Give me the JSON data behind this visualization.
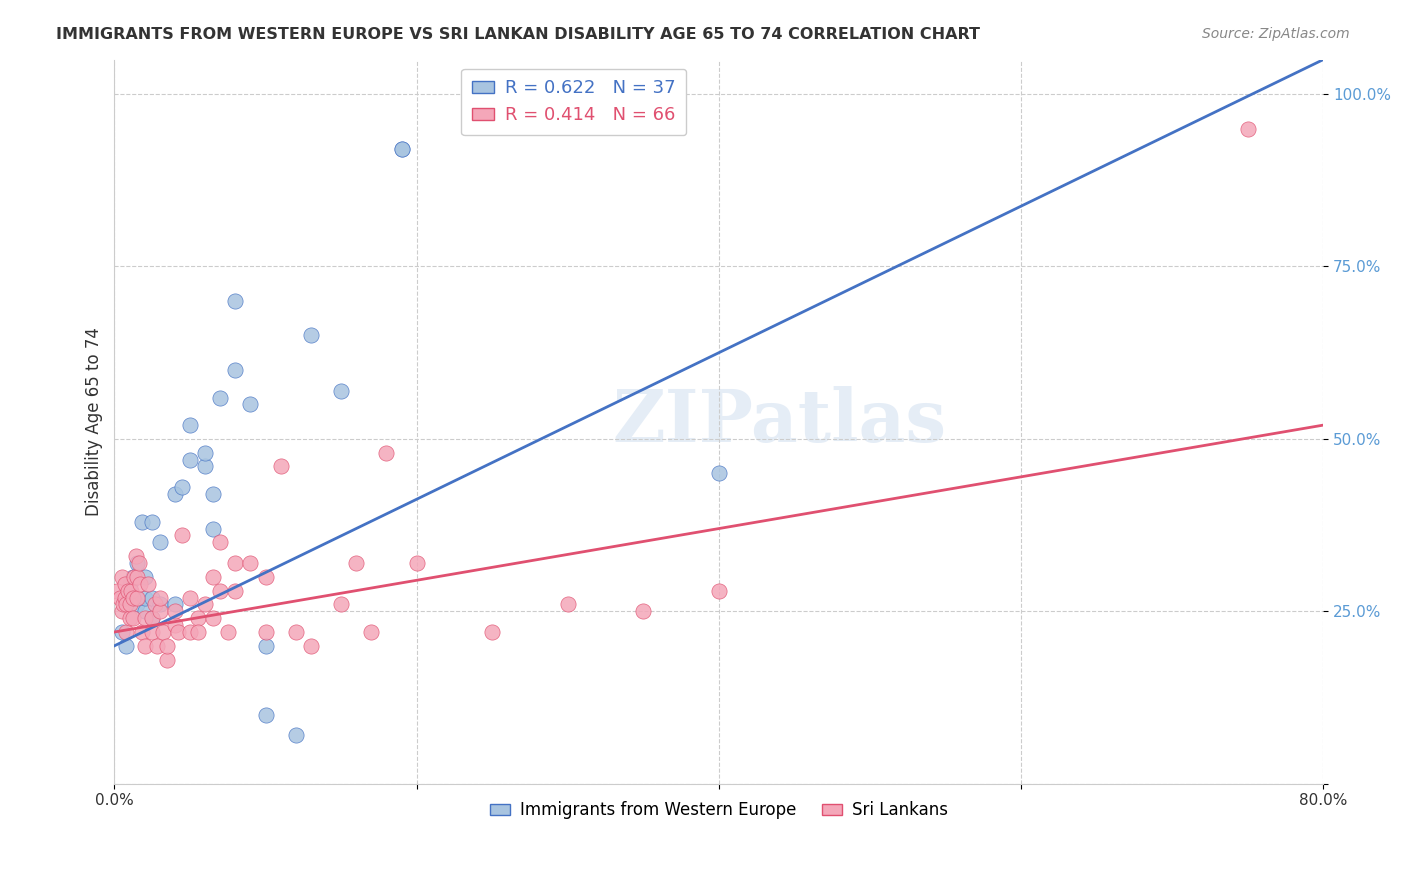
{
  "title": "IMMIGRANTS FROM WESTERN EUROPE VS SRI LANKAN DISABILITY AGE 65 TO 74 CORRELATION CHART",
  "source": "Source: ZipAtlas.com",
  "xlabel": "",
  "ylabel": "Disability Age 65 to 74",
  "xmin": 0.0,
  "xmax": 0.8,
  "ymin": 0.0,
  "ymax": 1.05,
  "xticks": [
    0.0,
    0.2,
    0.4,
    0.6,
    0.8
  ],
  "xticklabels": [
    "0.0%",
    "",
    "",
    "",
    "80.0%"
  ],
  "yticks": [
    0.0,
    0.25,
    0.5,
    0.75,
    1.0
  ],
  "yticklabels": [
    "",
    "25.0%",
    "50.0%",
    "75.0%",
    "100.0%"
  ],
  "blue_R": 0.622,
  "blue_N": 37,
  "pink_R": 0.414,
  "pink_N": 66,
  "blue_color": "#a8c4e0",
  "pink_color": "#f4a7b9",
  "blue_line_color": "#4472C4",
  "pink_line_color": "#E05070",
  "watermark": "ZIPatlas",
  "blue_scatter_x": [
    0.005,
    0.008,
    0.01,
    0.01,
    0.012,
    0.015,
    0.015,
    0.018,
    0.02,
    0.02,
    0.02,
    0.025,
    0.025,
    0.025,
    0.03,
    0.03,
    0.04,
    0.04,
    0.045,
    0.05,
    0.05,
    0.06,
    0.06,
    0.065,
    0.065,
    0.07,
    0.08,
    0.08,
    0.09,
    0.1,
    0.1,
    0.12,
    0.13,
    0.15,
    0.19,
    0.19,
    0.4
  ],
  "blue_scatter_y": [
    0.22,
    0.2,
    0.28,
    0.29,
    0.3,
    0.26,
    0.32,
    0.38,
    0.25,
    0.27,
    0.3,
    0.24,
    0.27,
    0.38,
    0.26,
    0.35,
    0.26,
    0.42,
    0.43,
    0.47,
    0.52,
    0.46,
    0.48,
    0.37,
    0.42,
    0.56,
    0.6,
    0.7,
    0.55,
    0.2,
    0.1,
    0.07,
    0.65,
    0.57,
    0.92,
    0.92,
    0.45
  ],
  "pink_scatter_x": [
    0.002,
    0.004,
    0.005,
    0.005,
    0.006,
    0.007,
    0.007,
    0.008,
    0.008,
    0.009,
    0.01,
    0.01,
    0.011,
    0.012,
    0.012,
    0.013,
    0.014,
    0.015,
    0.015,
    0.016,
    0.017,
    0.018,
    0.02,
    0.02,
    0.022,
    0.025,
    0.025,
    0.027,
    0.028,
    0.03,
    0.03,
    0.032,
    0.035,
    0.035,
    0.04,
    0.04,
    0.042,
    0.045,
    0.05,
    0.05,
    0.055,
    0.055,
    0.06,
    0.065,
    0.065,
    0.07,
    0.07,
    0.075,
    0.08,
    0.08,
    0.09,
    0.1,
    0.1,
    0.11,
    0.12,
    0.13,
    0.15,
    0.16,
    0.17,
    0.18,
    0.2,
    0.25,
    0.3,
    0.35,
    0.4,
    0.75
  ],
  "pink_scatter_y": [
    0.28,
    0.27,
    0.25,
    0.3,
    0.26,
    0.27,
    0.29,
    0.22,
    0.26,
    0.28,
    0.24,
    0.26,
    0.28,
    0.24,
    0.27,
    0.3,
    0.33,
    0.27,
    0.3,
    0.32,
    0.29,
    0.22,
    0.2,
    0.24,
    0.29,
    0.22,
    0.24,
    0.26,
    0.2,
    0.25,
    0.27,
    0.22,
    0.18,
    0.2,
    0.23,
    0.25,
    0.22,
    0.36,
    0.22,
    0.27,
    0.24,
    0.22,
    0.26,
    0.3,
    0.24,
    0.35,
    0.28,
    0.22,
    0.32,
    0.28,
    0.32,
    0.22,
    0.3,
    0.46,
    0.22,
    0.2,
    0.26,
    0.32,
    0.22,
    0.48,
    0.32,
    0.22,
    0.26,
    0.25,
    0.28,
    0.95
  ],
  "blue_line_x": [
    0.0,
    0.8
  ],
  "blue_line_y": [
    0.2,
    1.05
  ],
  "pink_line_x": [
    0.0,
    0.8
  ],
  "pink_line_y": [
    0.22,
    0.52
  ]
}
